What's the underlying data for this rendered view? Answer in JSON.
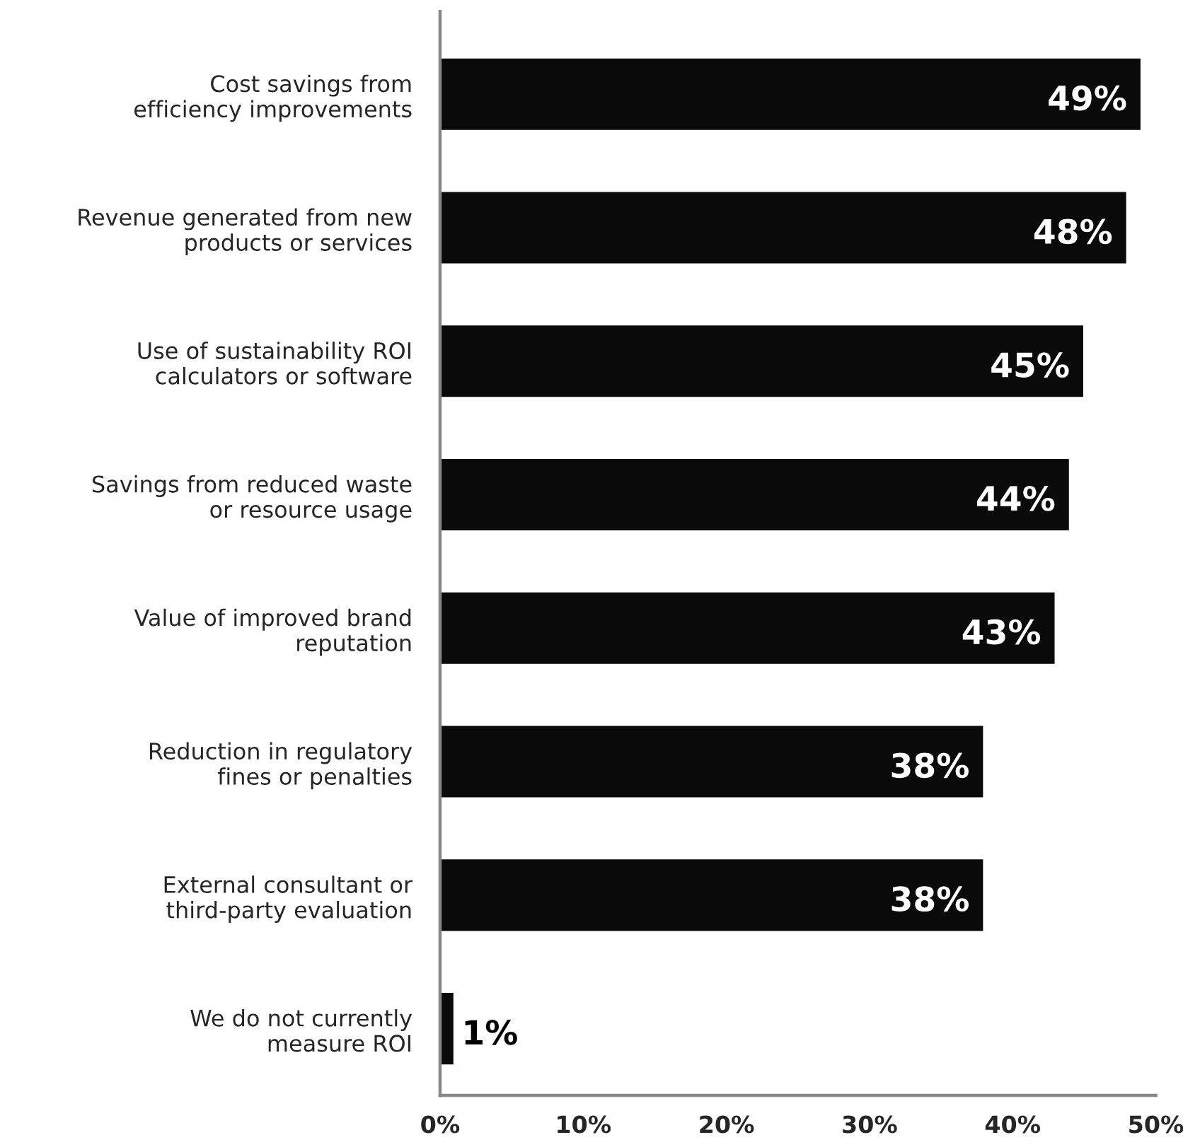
{
  "chart_data": {
    "type": "bar",
    "orientation": "horizontal",
    "categories": [
      "Cost savings from\nefficiency improvements",
      "Revenue generated from new\nproducts or services",
      "Use of sustainability ROI\ncalculators or software",
      "Savings from reduced waste\nor resource usage",
      "Value of improved brand\nreputation",
      "Reduction in regulatory\nfines or penalties",
      "External consultant or\nthird-party evaluation",
      "We do not currently\nmeasure ROI"
    ],
    "values": [
      49,
      48,
      45,
      44,
      43,
      38,
      38,
      1
    ],
    "value_labels": [
      "49%",
      "48%",
      "45%",
      "44%",
      "43%",
      "38%",
      "38%",
      "1%"
    ],
    "color": "#0a0a0a",
    "xlim": [
      0,
      50
    ],
    "xticks": [
      {
        "value": 0,
        "label": "0%"
      },
      {
        "value": 10,
        "label": "10%"
      },
      {
        "value": 20,
        "label": "20%"
      },
      {
        "value": 30,
        "label": "30%"
      },
      {
        "value": 40,
        "label": "40%"
      },
      {
        "value": 50,
        "label": "50%"
      }
    ],
    "grid": false,
    "legend": false
  }
}
